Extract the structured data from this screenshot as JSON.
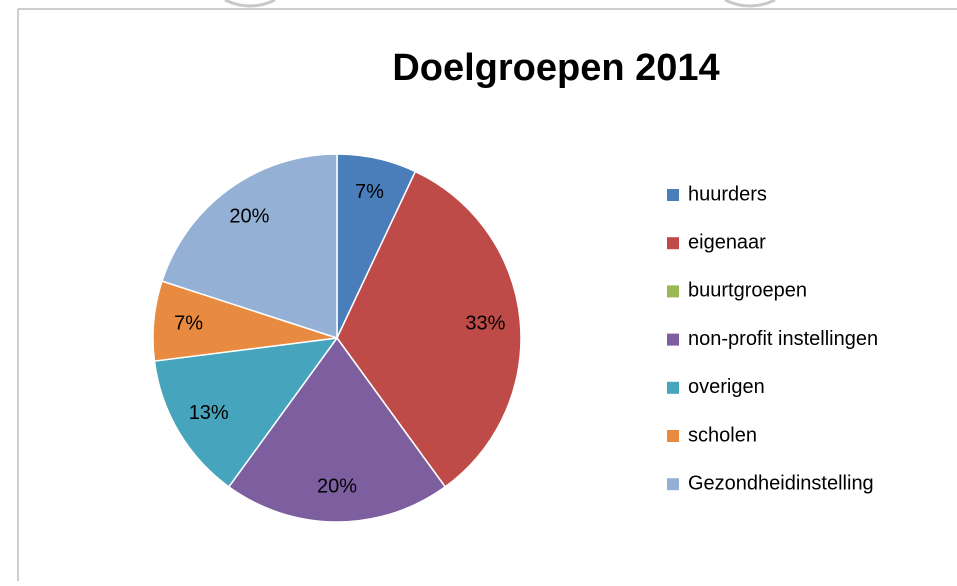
{
  "chart_data": {
    "type": "pie",
    "title": "Doelgroepen 2014",
    "categories": [
      "huurders",
      "eigenaar",
      "buurtgroepen",
      "non-profit instellingen",
      "overigen",
      "scholen",
      "Gezondheidinstelling"
    ],
    "values": [
      7,
      33,
      0,
      20,
      13,
      7,
      20
    ],
    "value_labels": [
      "7%",
      "33%",
      null,
      "20%",
      "13%",
      "7%",
      "20%"
    ],
    "colors": [
      "#4a7ebb",
      "#be4b48",
      "#98b954",
      "#7d5fa0",
      "#46a5bd",
      "#e88a3f",
      "#95b0d5"
    ],
    "legend": "right"
  }
}
